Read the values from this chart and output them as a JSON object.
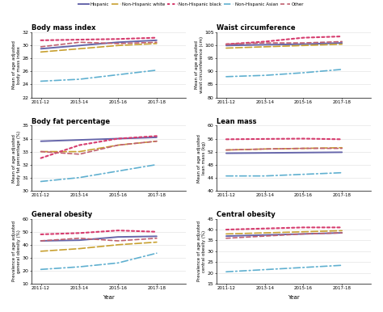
{
  "years": [
    2011,
    2013,
    2015,
    2017
  ],
  "year_labels": [
    "2011-12",
    "2013-14",
    "2015-16",
    "2017-18"
  ],
  "series_order": [
    "Hispanic",
    "Non-Hispanic white",
    "Non-Hispanic black",
    "Non-Hispanic Asian",
    "Other"
  ],
  "series": {
    "Hispanic": {
      "color": "#6666aa",
      "ls_type": "solid",
      "lw": 1.4,
      "bmi": [
        29.5,
        30.0,
        30.5,
        30.8
      ],
      "waist": [
        100.0,
        100.3,
        100.5,
        101.0
      ],
      "bfp": [
        33.8,
        33.9,
        34.0,
        34.1
      ],
      "lean": [
        51.5,
        51.6,
        51.7,
        51.8
      ],
      "gen_obesity": [
        43.0,
        43.5,
        46.0,
        46.5
      ],
      "central_obesity": [
        37.0,
        37.5,
        38.0,
        38.5
      ]
    },
    "Non-Hispanic white": {
      "color": "#c8a030",
      "ls_type": "long_dash",
      "lw": 1.2,
      "bmi": [
        29.0,
        29.5,
        30.0,
        30.3
      ],
      "waist": [
        99.0,
        99.5,
        100.0,
        100.5
      ],
      "bfp": [
        33.0,
        33.0,
        33.5,
        33.8
      ],
      "lean": [
        52.5,
        52.8,
        53.0,
        53.2
      ],
      "gen_obesity": [
        35.0,
        37.0,
        40.0,
        42.0
      ],
      "central_obesity": [
        38.0,
        38.5,
        39.0,
        39.5
      ]
    },
    "Non-Hispanic black": {
      "color": "#d63c6e",
      "ls_type": "dotted",
      "lw": 1.5,
      "bmi": [
        30.8,
        30.9,
        31.0,
        31.2
      ],
      "waist": [
        100.5,
        101.5,
        103.0,
        103.5
      ],
      "bfp": [
        32.5,
        33.5,
        34.0,
        34.2
      ],
      "lean": [
        55.8,
        55.9,
        56.0,
        55.8
      ],
      "gen_obesity": [
        48.0,
        49.0,
        51.0,
        50.0
      ],
      "central_obesity": [
        40.0,
        40.5,
        41.0,
        41.0
      ]
    },
    "Non-Hispanic Asian": {
      "color": "#60b0d0",
      "ls_type": "dashdot",
      "lw": 1.2,
      "bmi": [
        24.5,
        24.8,
        25.5,
        26.2
      ],
      "waist": [
        88.0,
        88.5,
        89.5,
        90.8
      ],
      "bfp": [
        30.7,
        31.0,
        31.5,
        32.0
      ],
      "lean": [
        44.5,
        44.5,
        45.0,
        45.5
      ],
      "gen_obesity": [
        21.0,
        23.0,
        26.0,
        33.5
      ],
      "central_obesity": [
        20.5,
        21.5,
        22.5,
        23.5
      ]
    },
    "Other": {
      "color": "#c06070",
      "ls_type": "short_dash",
      "lw": 1.2,
      "bmi": [
        29.8,
        30.5,
        30.3,
        30.5
      ],
      "waist": [
        100.5,
        101.0,
        101.0,
        101.5
      ],
      "bfp": [
        33.0,
        32.8,
        33.5,
        33.8
      ],
      "lean": [
        52.5,
        52.8,
        53.0,
        53.0
      ],
      "gen_obesity": [
        43.0,
        45.0,
        43.0,
        45.0
      ],
      "central_obesity": [
        36.0,
        37.0,
        38.0,
        38.5
      ]
    }
  },
  "panels": [
    {
      "key": "bmi",
      "title": "Body mass index",
      "ylabel": "Mean of age adjusted\nbody mass index",
      "row": 0,
      "col": 0
    },
    {
      "key": "waist",
      "title": "Waist circumference",
      "ylabel": "Mean of age adjusted\nwaist circumference (cm)",
      "row": 0,
      "col": 1
    },
    {
      "key": "bfp",
      "title": "Body fat percentage",
      "ylabel": "Mean of age adjusted\nbody fat percentage (%)",
      "row": 1,
      "col": 0
    },
    {
      "key": "lean",
      "title": "Lean mass",
      "ylabel": "Mean of age adjusted\nlean mass (kg)",
      "row": 1,
      "col": 1
    },
    {
      "key": "gen_obesity",
      "title": "General obesity",
      "ylabel": "Prevalence of age adjusted\ngeneral obesity (%)",
      "row": 2,
      "col": 0
    },
    {
      "key": "central_obesity",
      "title": "Central obesity",
      "ylabel": "Prevalence of age adjusted\ncentral obesity (%)",
      "row": 2,
      "col": 1
    }
  ],
  "ylims": {
    "bmi": [
      22,
      32
    ],
    "waist": [
      80,
      105
    ],
    "bfp": [
      30,
      35
    ],
    "lean": [
      40,
      60
    ],
    "gen_obesity": [
      10,
      60
    ],
    "central_obesity": [
      15,
      45
    ]
  },
  "yticks": {
    "bmi": [
      22,
      24,
      26,
      28,
      30,
      32
    ],
    "waist": [
      80,
      85,
      90,
      95,
      100,
      105
    ],
    "bfp": [
      30,
      31,
      32,
      33,
      34,
      35
    ],
    "lean": [
      40,
      44,
      48,
      52,
      56,
      60
    ],
    "gen_obesity": [
      10,
      20,
      30,
      40,
      50,
      60
    ],
    "central_obesity": [
      15,
      20,
      25,
      30,
      35,
      40,
      45
    ]
  }
}
